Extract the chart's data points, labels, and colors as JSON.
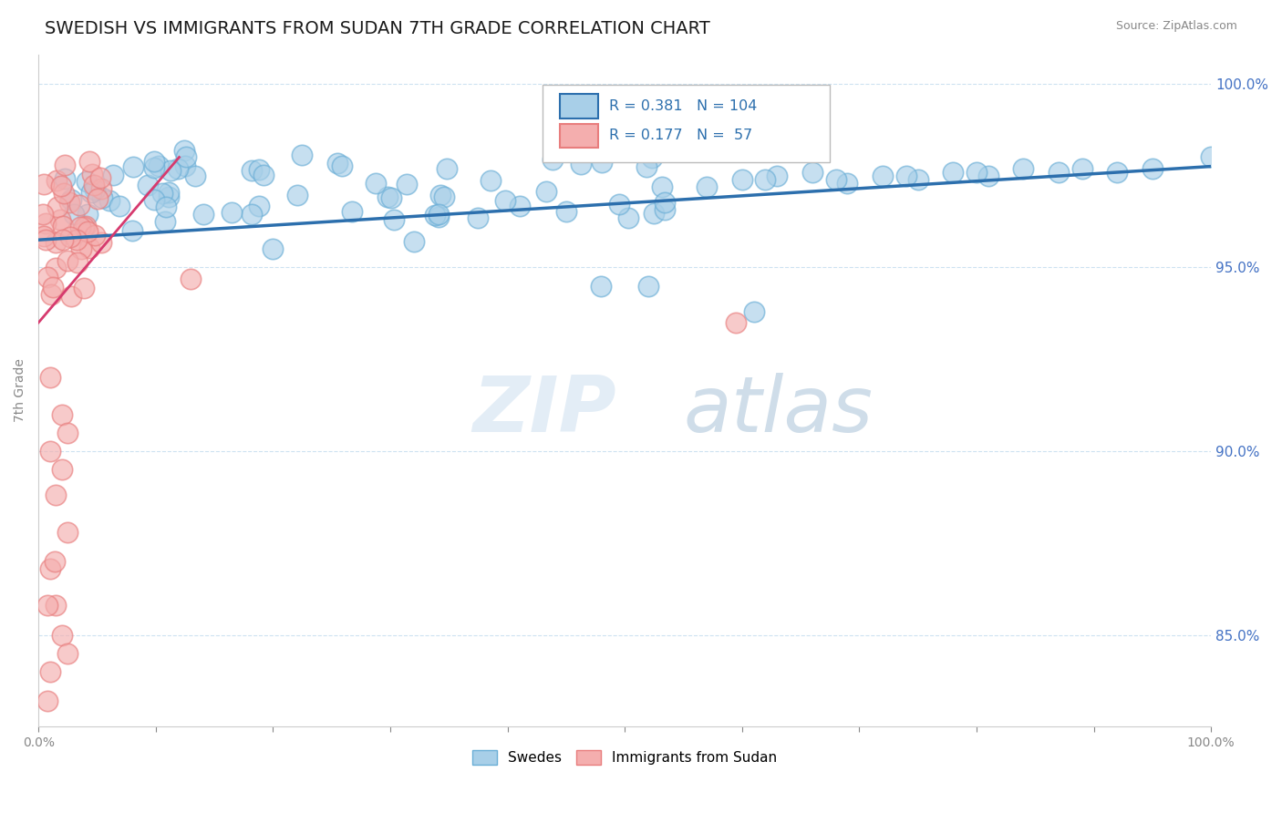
{
  "title": "SWEDISH VS IMMIGRANTS FROM SUDAN 7TH GRADE CORRELATION CHART",
  "source_text": "Source: ZipAtlas.com",
  "ylabel": "7th Grade",
  "y_min": 0.825,
  "y_max": 1.008,
  "x_min": 0.0,
  "x_max": 1.0,
  "legend_r_blue": "R = 0.381",
  "legend_n_blue": "N = 104",
  "legend_r_pink": "R = 0.177",
  "legend_n_pink": "N =  57",
  "blue_color": "#a8cfe8",
  "blue_edge_color": "#6aaed6",
  "pink_color": "#f4aeae",
  "pink_edge_color": "#e87d7d",
  "blue_line_color": "#2c6fad",
  "pink_line_color": "#d63a6e",
  "watermark_zip": "ZIP",
  "watermark_atlas": "atlas",
  "title_fontsize": 14,
  "axis_label_fontsize": 10,
  "right_tick_color": "#4472c4",
  "grid_color": "#c8dff0",
  "blue_line_x0": 0.0,
  "blue_line_y0": 0.9575,
  "blue_line_x1": 1.0,
  "blue_line_y1": 0.9775,
  "pink_line_x0": 0.0,
  "pink_line_y0": 0.935,
  "pink_line_x1": 0.12,
  "pink_line_y1": 0.98
}
